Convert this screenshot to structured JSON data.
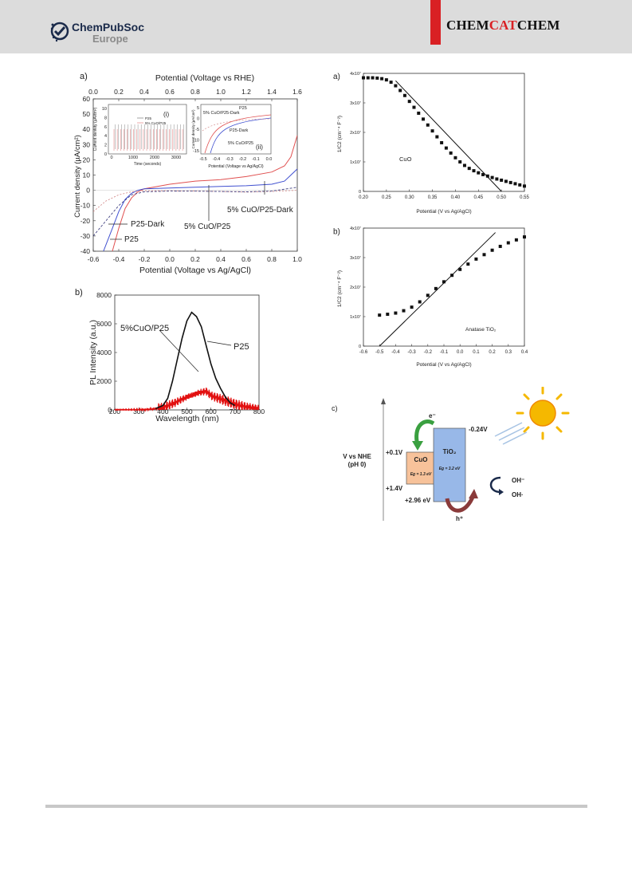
{
  "header": {
    "publisher": "ChemPubSoc",
    "publisher_sub": "Europe",
    "journal_a": "CHEM",
    "journal_b": "CAT",
    "journal_c": "CHEM",
    "accent": "#d92024"
  },
  "panel_jv": {
    "label": "a)",
    "top_axis_title": "Potential (Voltage vs RHE)",
    "bottom_axis_title": "Potential (Voltage vs Ag/AgCl)",
    "y_axis_title": "Current density (µA/cm²)",
    "top_ticks": [
      "0.0",
      "0.2",
      "0.4",
      "0.6",
      "0.8",
      "1.0",
      "1.2",
      "1.4",
      "1.6"
    ],
    "bottom_ticks": [
      "-0.6",
      "-0.4",
      "-0.2",
      "0.0",
      "0.2",
      "0.4",
      "0.6",
      "0.8",
      "1.0"
    ],
    "y_ticks": [
      "60",
      "50",
      "40",
      "30",
      "20",
      "10",
      "0",
      "-10",
      "-20",
      "-30",
      "-40"
    ],
    "annotations": {
      "p25_dark": "P25-Dark",
      "p25": "P25",
      "cuo": "5% CuO/P25",
      "cuo_dark": "5% CuO/P25-Dark"
    },
    "inset_i": {
      "label": "(i)",
      "xlabel": "Time (seconds)",
      "ylabel": "Current density (µA/cm²)",
      "x_ticks": [
        "0",
        "1000",
        "2000",
        "3000"
      ],
      "y_ticks": [
        "10",
        "8",
        "6",
        "4",
        "2",
        "0"
      ],
      "legend": [
        "P25",
        "5% CuO/P25"
      ]
    },
    "inset_ii": {
      "label": "(ii)",
      "xlabel": "Potential (Voltage vs Ag/AgCl)",
      "ylabel": "Current density (µA/cm²)",
      "x_ticks": [
        "-0.5",
        "-0.4",
        "-0.3",
        "-0.2",
        "-0.1",
        "0.0"
      ],
      "y_ticks": [
        "5",
        "0",
        "-5",
        "-10",
        "-15"
      ],
      "annotations": {
        "p25": "P25",
        "cuo_dark": "5% CuO/P25-Dark",
        "p25_dark": "P25-Dark",
        "cuo": "5% CuO/P25"
      }
    }
  },
  "panel_pl": {
    "label": "b)",
    "xlabel": "Wavelength (nm)",
    "ylabel": "PL Intensity (a.u.)",
    "x_ticks": [
      "200",
      "300",
      "400",
      "500",
      "600",
      "700",
      "800"
    ],
    "y_ticks": [
      "8000",
      "6000",
      "4000",
      "2000",
      "0"
    ],
    "annotations": {
      "cuo": "5%CuO/P25",
      "p25": "P25"
    }
  },
  "panel_ms_cuo": {
    "label": "a)",
    "xlabel": "Potential (V vs Ag/AgCl)",
    "ylabel": "1/C2 (cm⁻⁴ F⁻²)",
    "x_ticks": [
      "0.20",
      "0.25",
      "0.30",
      "0.35",
      "0.40",
      "0.45",
      "0.50",
      "0.55"
    ],
    "y_ticks": [
      "4x10⁷",
      "3x10⁷",
      "2x10⁷",
      "1x10⁷",
      "0"
    ],
    "material": "CuO"
  },
  "panel_ms_tio2": {
    "label": "b)",
    "xlabel": "Potential (V vs Ag/AgCl)",
    "ylabel": "1/C2 (cm⁻⁴ F⁻²)",
    "x_ticks": [
      "-0.6",
      "-0.5",
      "-0.4",
      "-0.3",
      "-0.2",
      "-0.1",
      "0.0",
      "0.1",
      "0.2",
      "0.3",
      "0.4"
    ],
    "y_ticks": [
      "4x10⁷",
      "3x10⁷",
      "2x10⁷",
      "1x10⁷",
      "0"
    ],
    "material": "Anatase TiO₂"
  },
  "panel_band": {
    "label": "c)",
    "axis_label_1": "V vs NHE",
    "axis_label_2": "(pH 0)",
    "electron": "e⁻",
    "hole": "h⁺",
    "cb_tio2": "-0.24V",
    "cb_cuo": "+0.1V",
    "vb_cuo": "+1.4V",
    "vb_tio2": "+2.96 eV",
    "cuo_label": "CuO",
    "cuo_gap": "Eg = 1.3 eV",
    "tio2_label": "TiO₂",
    "tio2_gap": "Eg = 3.2 eV",
    "oh_minus": "OH⁻",
    "oh_radical": "OH·"
  },
  "chart_data": [
    {
      "type": "line",
      "xlabel": "Potential (Voltage vs Ag/AgCl)",
      "ylabel": "Current density (µA/cm²)",
      "xlim": [
        -0.6,
        1.0
      ],
      "ylim": [
        -40,
        60
      ],
      "series": [
        {
          "name": "5% CuO/P25",
          "x": [
            -0.45,
            -0.4,
            -0.35,
            -0.3,
            -0.25,
            -0.2,
            0.0,
            0.2,
            0.4,
            0.6,
            0.8,
            0.9,
            0.95,
            1.0
          ],
          "y": [
            -40,
            -25,
            -12,
            -5,
            -1,
            1,
            4,
            6,
            7,
            9,
            12,
            16,
            22,
            36
          ]
        },
        {
          "name": "P25",
          "x": [
            -0.52,
            -0.45,
            -0.4,
            -0.35,
            -0.3,
            -0.25,
            -0.2,
            0.0,
            0.2,
            0.4,
            0.6,
            0.8,
            0.9,
            1.0
          ],
          "y": [
            -40,
            -25,
            -14,
            -6,
            -2,
            0,
            1,
            1.5,
            2,
            2.5,
            3,
            4,
            6,
            14
          ]
        },
        {
          "name": "P25-Dark",
          "x": [
            -0.6,
            -0.5,
            -0.4,
            -0.3,
            -0.2,
            0.0,
            0.2,
            0.4,
            0.6,
            0.8,
            1.0
          ],
          "y": [
            -14,
            -7,
            -3,
            -1,
            -0.3,
            -0.3,
            -0.5,
            -0.8,
            -1.2,
            -0.8,
            0
          ]
        },
        {
          "name": "5% CuO/P25-Dark",
          "x": [
            -0.6,
            -0.5,
            -0.4,
            -0.3,
            -0.2,
            0.0,
            0.2,
            0.4,
            0.6,
            0.8,
            1.0
          ],
          "y": [
            -30,
            -20,
            -10,
            -3,
            -1,
            -0.5,
            -0.6,
            -0.8,
            -1,
            -0.5,
            2
          ]
        }
      ]
    },
    {
      "type": "line",
      "xlabel": "Wavelength (nm)",
      "ylabel": "PL Intensity (a.u.)",
      "xlim": [
        200,
        800
      ],
      "ylim": [
        0,
        8000
      ],
      "series": [
        {
          "name": "P25",
          "x": [
            370,
            400,
            420,
            440,
            460,
            480,
            500,
            520,
            540,
            560,
            580,
            600,
            620,
            640,
            660,
            680,
            700
          ],
          "y": [
            100,
            300,
            800,
            2000,
            3500,
            5000,
            6200,
            6800,
            6500,
            5800,
            4500,
            3200,
            2200,
            1500,
            900,
            500,
            300
          ]
        },
        {
          "name": "5%CuO/P25",
          "x": [
            200,
            300,
            350,
            400,
            450,
            500,
            550,
            580,
            600,
            650,
            700,
            750,
            800
          ],
          "y": [
            0,
            0,
            50,
            150,
            500,
            900,
            1200,
            1300,
            1000,
            700,
            400,
            200,
            100
          ]
        }
      ]
    },
    {
      "type": "scatter",
      "xlabel": "Potential (V vs Ag/AgCl)",
      "ylabel": "1/C2 (cm⁻⁴ F⁻²)",
      "xlim": [
        0.2,
        0.55
      ],
      "ylim": [
        0,
        40000000.0
      ],
      "series": [
        {
          "name": "CuO",
          "x": [
            0.2,
            0.21,
            0.22,
            0.23,
            0.24,
            0.25,
            0.26,
            0.27,
            0.28,
            0.29,
            0.3,
            0.31,
            0.32,
            0.33,
            0.34,
            0.35,
            0.36,
            0.37,
            0.38,
            0.39,
            0.4,
            0.41,
            0.42,
            0.43,
            0.44,
            0.45,
            0.46,
            0.47,
            0.48,
            0.49,
            0.5,
            0.51,
            0.52,
            0.53,
            0.54,
            0.55
          ],
          "y": [
            38500000.0,
            38500000.0,
            38500000.0,
            38400000.0,
            38200000.0,
            37800000.0,
            37000000.0,
            35800000.0,
            34200000.0,
            32500000.0,
            30500000.0,
            28500000.0,
            26500000.0,
            24500000.0,
            22500000.0,
            20500000.0,
            18500000.0,
            16500000.0,
            14700000.0,
            13000000.0,
            11400000.0,
            10000000.0,
            8800000.0,
            7800000.0,
            7000000.0,
            6300000.0,
            5700000.0,
            5200000.0,
            4700000.0,
            4200000.0,
            3800000.0,
            3400000.0,
            3000000.0,
            2600000.0,
            2200000.0,
            1800000.0
          ]
        }
      ]
    },
    {
      "type": "scatter",
      "xlabel": "Potential (V vs Ag/AgCl)",
      "ylabel": "1/C2 (cm⁻⁴ F⁻²)",
      "xlim": [
        -0.6,
        0.4
      ],
      "ylim": [
        0,
        40000000.0
      ],
      "series": [
        {
          "name": "Anatase TiO₂",
          "x": [
            -0.5,
            -0.45,
            -0.4,
            -0.35,
            -0.3,
            -0.25,
            -0.2,
            -0.15,
            -0.1,
            -0.05,
            0.0,
            0.05,
            0.1,
            0.15,
            0.2,
            0.25,
            0.3,
            0.35,
            0.4
          ],
          "y": [
            10500000.0,
            10800000.0,
            11200000.0,
            12000000.0,
            13200000.0,
            15000000.0,
            17200000.0,
            19500000.0,
            21800000.0,
            24000000.0,
            26000000.0,
            27800000.0,
            29500000.0,
            31000000.0,
            32500000.0,
            33800000.0,
            35000000.0,
            36000000.0,
            37000000.0
          ]
        }
      ]
    }
  ]
}
